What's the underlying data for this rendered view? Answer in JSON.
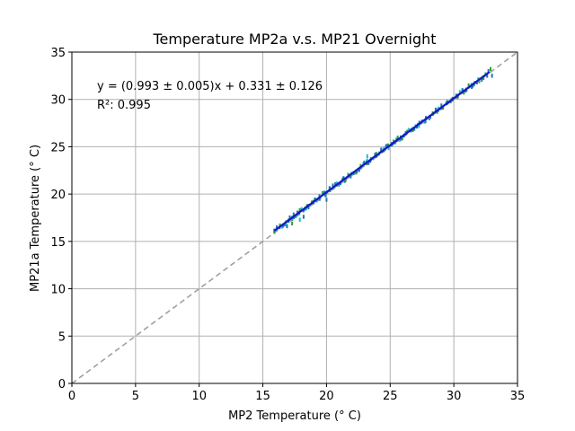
{
  "chart_data": {
    "type": "scatter",
    "title": "Temperature MP2a v.s. MP21 Overnight",
    "xlabel": "MP2 Temperature (° C)",
    "ylabel": "MP21a Temperature (° C)",
    "xlim": [
      0,
      35
    ],
    "ylim": [
      0,
      35
    ],
    "xticks": [
      "0",
      "5",
      "10",
      "15",
      "20",
      "25",
      "30",
      "35"
    ],
    "yticks": [
      "0",
      "5",
      "10",
      "15",
      "20",
      "25",
      "30",
      "35"
    ],
    "grid": true,
    "fit_equation": "y = (0.993 ± 0.005)x + 0.331 ± 0.126",
    "r_squared": "R²: 0.995",
    "identity_line": {
      "from": [
        0,
        0
      ],
      "to": [
        35,
        35
      ],
      "style": "dashed",
      "color": "#a0a0a0"
    },
    "fit_line": {
      "slope": 0.993,
      "intercept": 0.331,
      "x_range": [
        15.9,
        32.8
      ],
      "color": "#1515c8"
    },
    "points": {
      "x_range": [
        15.9,
        32.8
      ],
      "slope": 0.993,
      "intercept": 0.331,
      "colors": [
        "#1f77b4",
        "#2ca02c",
        "#17becf",
        "#1f77b4"
      ],
      "outliers": [
        [
          16.9,
          16.6
        ],
        [
          17.3,
          16.9
        ],
        [
          17.9,
          17.3
        ],
        [
          18.2,
          17.6
        ],
        [
          20.0,
          19.4
        ],
        [
          21.7,
          22.0
        ],
        [
          23.2,
          24.0
        ],
        [
          24.3,
          24.7
        ],
        [
          33.0,
          32.5
        ]
      ]
    },
    "colors": {
      "grid": "#b0b0b0",
      "axes": "#000000"
    }
  }
}
